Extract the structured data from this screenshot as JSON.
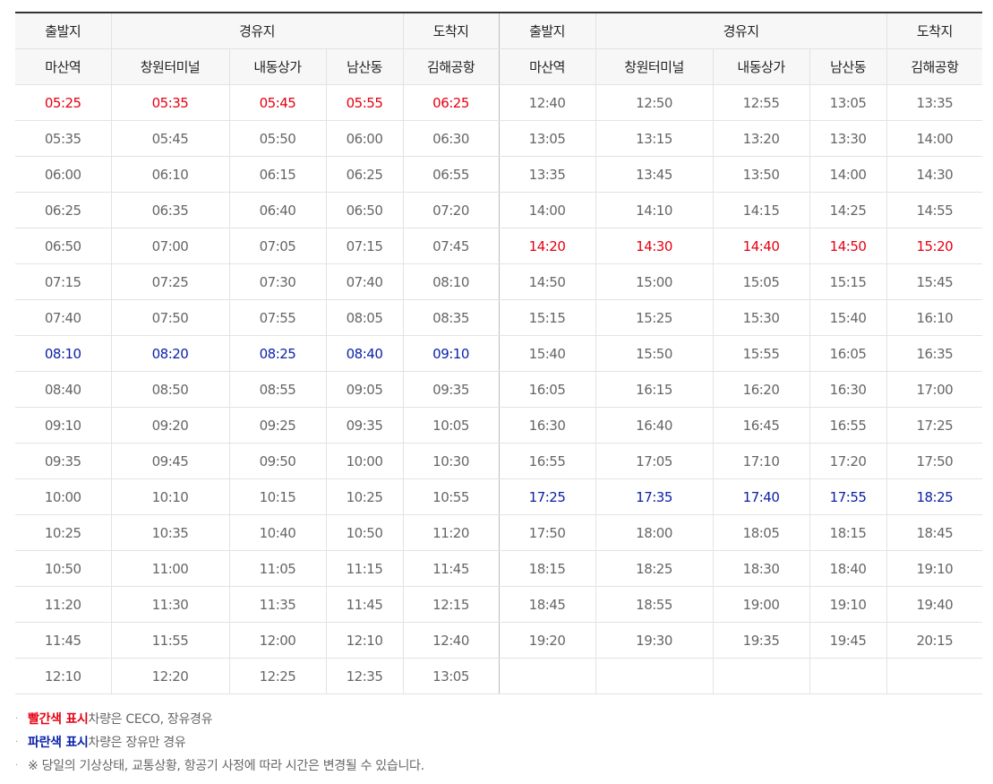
{
  "header": {
    "groups": [
      "출발지",
      "경유지",
      "도착지",
      "출발지",
      "경유지",
      "도착지"
    ],
    "stations": [
      "마산역",
      "창원터미널",
      "내동상가",
      "남산동",
      "김해공항",
      "마산역",
      "창원터미널",
      "내동상가",
      "남산동",
      "김해공항"
    ]
  },
  "colors": {
    "red": "#e60012",
    "blue": "#0b22a8",
    "normal": "#666666"
  },
  "rows": [
    {
      "left": [
        "05:25",
        "05:35",
        "05:45",
        "05:55",
        "06:25"
      ],
      "left_color": "red",
      "right": [
        "12:40",
        "12:50",
        "12:55",
        "13:05",
        "13:35"
      ],
      "right_color": ""
    },
    {
      "left": [
        "05:35",
        "05:45",
        "05:50",
        "06:00",
        "06:30"
      ],
      "left_color": "",
      "right": [
        "13:05",
        "13:15",
        "13:20",
        "13:30",
        "14:00"
      ],
      "right_color": ""
    },
    {
      "left": [
        "06:00",
        "06:10",
        "06:15",
        "06:25",
        "06:55"
      ],
      "left_color": "",
      "right": [
        "13:35",
        "13:45",
        "13:50",
        "14:00",
        "14:30"
      ],
      "right_color": ""
    },
    {
      "left": [
        "06:25",
        "06:35",
        "06:40",
        "06:50",
        "07:20"
      ],
      "left_color": "",
      "right": [
        "14:00",
        "14:10",
        "14:15",
        "14:25",
        "14:55"
      ],
      "right_color": ""
    },
    {
      "left": [
        "06:50",
        "07:00",
        "07:05",
        "07:15",
        "07:45"
      ],
      "left_color": "",
      "right": [
        "14:20",
        "14:30",
        "14:40",
        "14:50",
        "15:20"
      ],
      "right_color": "red"
    },
    {
      "left": [
        "07:15",
        "07:25",
        "07:30",
        "07:40",
        "08:10"
      ],
      "left_color": "",
      "right": [
        "14:50",
        "15:00",
        "15:05",
        "15:15",
        "15:45"
      ],
      "right_color": ""
    },
    {
      "left": [
        "07:40",
        "07:50",
        "07:55",
        "08:05",
        "08:35"
      ],
      "left_color": "",
      "right": [
        "15:15",
        "15:25",
        "15:30",
        "15:40",
        "16:10"
      ],
      "right_color": ""
    },
    {
      "left": [
        "08:10",
        "08:20",
        "08:25",
        "08:40",
        "09:10"
      ],
      "left_color": "blue",
      "right": [
        "15:40",
        "15:50",
        "15:55",
        "16:05",
        "16:35"
      ],
      "right_color": ""
    },
    {
      "left": [
        "08:40",
        "08:50",
        "08:55",
        "09:05",
        "09:35"
      ],
      "left_color": "",
      "right": [
        "16:05",
        "16:15",
        "16:20",
        "16:30",
        "17:00"
      ],
      "right_color": ""
    },
    {
      "left": [
        "09:10",
        "09:20",
        "09:25",
        "09:35",
        "10:05"
      ],
      "left_color": "",
      "right": [
        "16:30",
        "16:40",
        "16:45",
        "16:55",
        "17:25"
      ],
      "right_color": ""
    },
    {
      "left": [
        "09:35",
        "09:45",
        "09:50",
        "10:00",
        "10:30"
      ],
      "left_color": "",
      "right": [
        "16:55",
        "17:05",
        "17:10",
        "17:20",
        "17:50"
      ],
      "right_color": ""
    },
    {
      "left": [
        "10:00",
        "10:10",
        "10:15",
        "10:25",
        "10:55"
      ],
      "left_color": "",
      "right": [
        "17:25",
        "17:35",
        "17:40",
        "17:55",
        "18:25"
      ],
      "right_color": "blue"
    },
    {
      "left": [
        "10:25",
        "10:35",
        "10:40",
        "10:50",
        "11:20"
      ],
      "left_color": "",
      "right": [
        "17:50",
        "18:00",
        "18:05",
        "18:15",
        "18:45"
      ],
      "right_color": ""
    },
    {
      "left": [
        "10:50",
        "11:00",
        "11:05",
        "11:15",
        "11:45"
      ],
      "left_color": "",
      "right": [
        "18:15",
        "18:25",
        "18:30",
        "18:40",
        "19:10"
      ],
      "right_color": ""
    },
    {
      "left": [
        "11:20",
        "11:30",
        "11:35",
        "11:45",
        "12:15"
      ],
      "left_color": "",
      "right": [
        "18:45",
        "18:55",
        "19:00",
        "19:10",
        "19:40"
      ],
      "right_color": ""
    },
    {
      "left": [
        "11:45",
        "11:55",
        "12:00",
        "12:10",
        "12:40"
      ],
      "left_color": "",
      "right": [
        "19:20",
        "19:30",
        "19:35",
        "19:45",
        "20:15"
      ],
      "right_color": ""
    },
    {
      "left": [
        "12:10",
        "12:20",
        "12:25",
        "12:35",
        "13:05"
      ],
      "left_color": "",
      "right": [
        "",
        "",
        "",
        "",
        ""
      ],
      "right_color": ""
    }
  ],
  "notes": [
    {
      "highlight": "빨간색 표시",
      "highlight_color": "red",
      "text": " 차량은 CECO, 장유경유"
    },
    {
      "highlight": "파란색 표시",
      "highlight_color": "blue",
      "text": " 차량은 장유만 경유"
    },
    {
      "highlight": "",
      "highlight_color": "",
      "text": "※ 당일의 기상상태, 교통상황, 항공기 사정에 따라 시간은 변경될 수 있습니다."
    }
  ]
}
